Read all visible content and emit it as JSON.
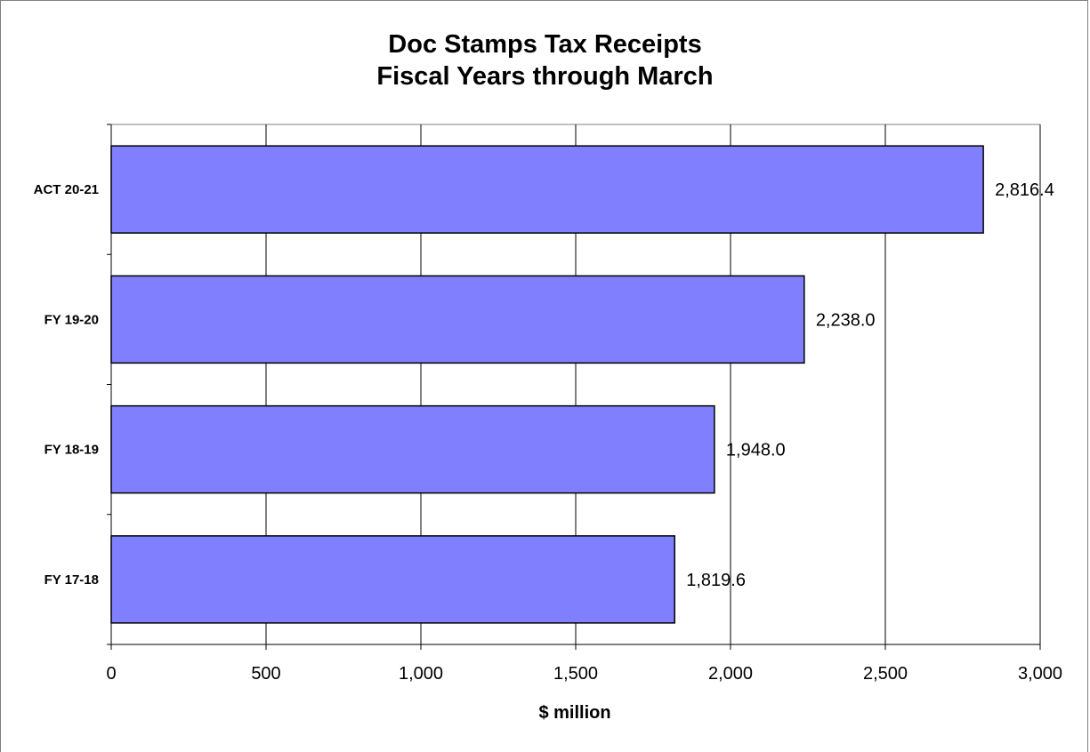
{
  "chart_data": {
    "type": "bar",
    "orientation": "horizontal",
    "title": "Doc Stamps Tax Receipts",
    "subtitle": "Fiscal Years through March",
    "xlabel": "$ million",
    "ylabel": "",
    "categories": [
      "ACT 20-21",
      "FY 19-20",
      "FY 18-19",
      "FY 17-18"
    ],
    "values": [
      2816.4,
      2238.0,
      1948.0,
      1819.6
    ],
    "data_labels": [
      "2,816.4",
      "2,238.0",
      "1,948.0",
      "1,819.6"
    ],
    "xlim": [
      0,
      3000
    ],
    "xticks": [
      0,
      500,
      1000,
      1500,
      2000,
      2500,
      3000
    ],
    "xtick_labels": [
      "0",
      "500",
      "1,000",
      "1,500",
      "2,000",
      "2,500",
      "3,000"
    ],
    "grid": true,
    "legend": "none",
    "bar_color": "#8080ff",
    "bar_edge_color": "#000000"
  }
}
